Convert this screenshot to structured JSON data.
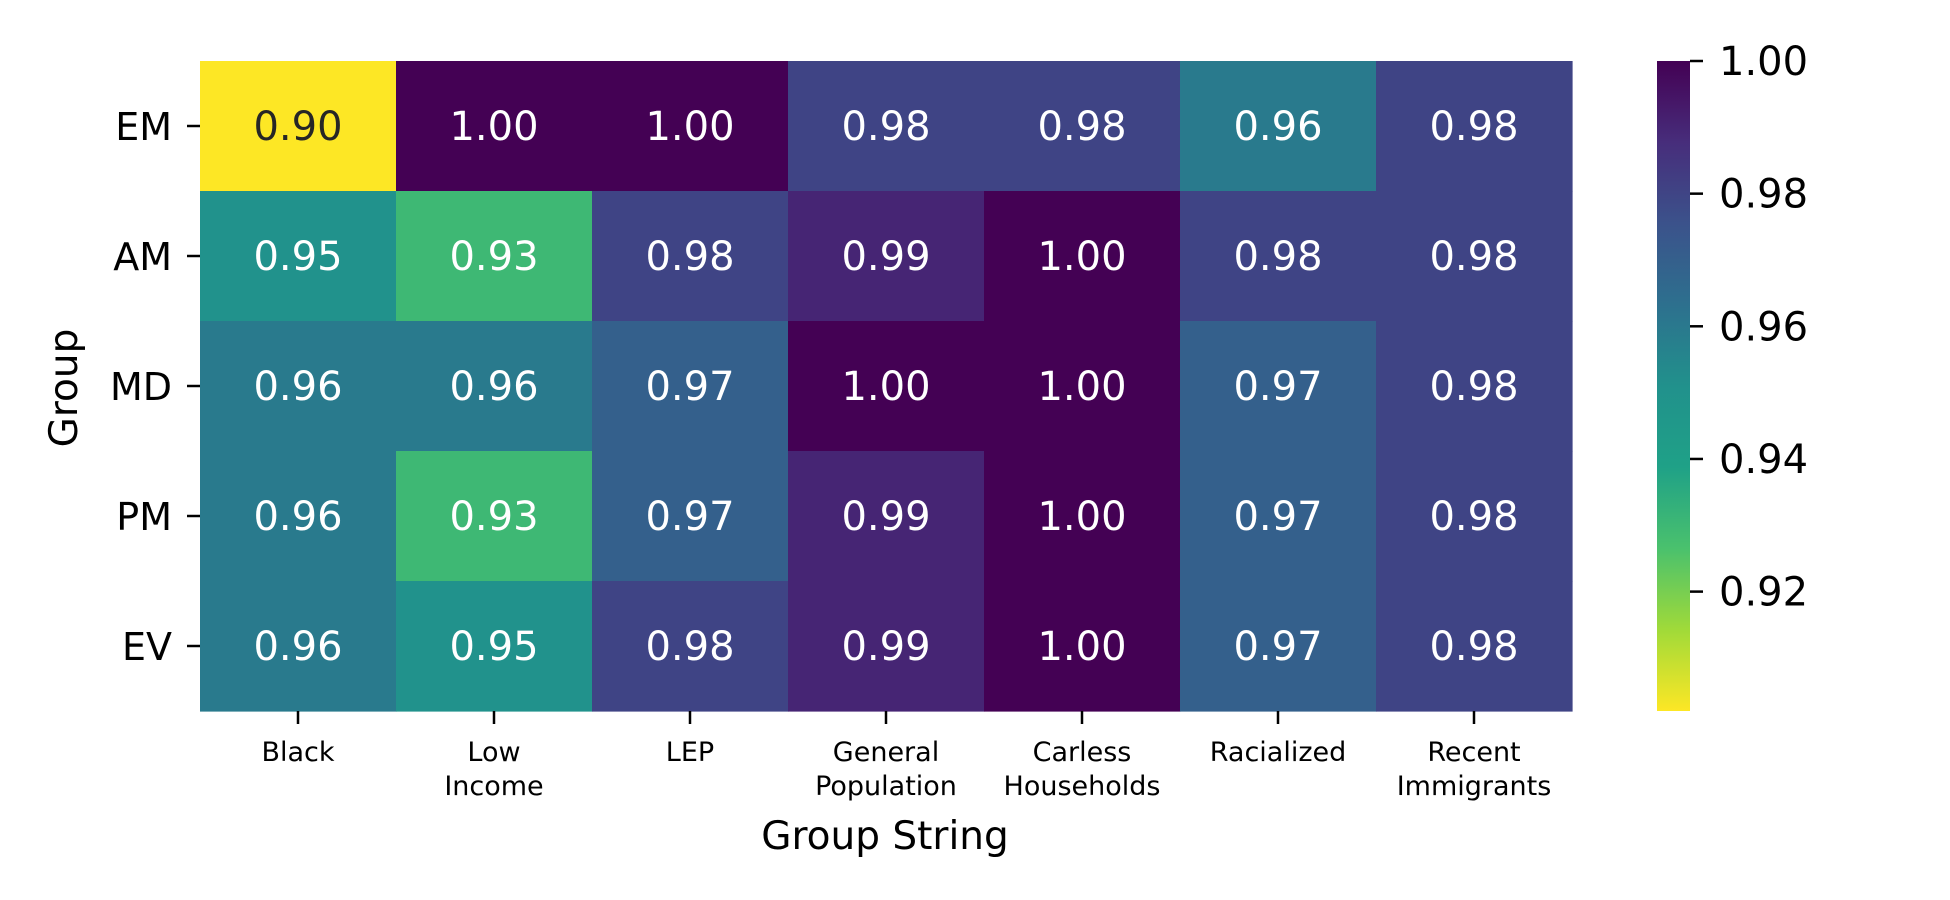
{
  "chart_data": {
    "type": "heatmap",
    "title": "",
    "xlabel": "Group String",
    "ylabel": "Group",
    "columns": [
      [
        "Black"
      ],
      [
        "Low",
        "Income"
      ],
      [
        "LEP"
      ],
      [
        "General",
        "Population"
      ],
      [
        "Carless",
        "Households"
      ],
      [
        "Racialized"
      ],
      [
        "Recent",
        "Immigrants"
      ]
    ],
    "rows": [
      "EM",
      "AM",
      "MD",
      "PM",
      "EV"
    ],
    "values": [
      [
        0.9,
        1.0,
        1.0,
        0.98,
        0.98,
        0.96,
        0.98
      ],
      [
        0.95,
        0.93,
        0.98,
        0.99,
        1.0,
        0.98,
        0.98
      ],
      [
        0.96,
        0.96,
        0.97,
        1.0,
        1.0,
        0.97,
        0.98
      ],
      [
        0.96,
        0.93,
        0.97,
        0.99,
        1.0,
        0.97,
        0.98
      ],
      [
        0.96,
        0.95,
        0.98,
        0.99,
        1.0,
        0.97,
        0.98
      ]
    ],
    "colorbar": {
      "colormap": "viridis_r",
      "range": [
        0.902,
        1.0
      ],
      "ticks": [
        1.0,
        0.98,
        0.96,
        0.94,
        0.92
      ]
    }
  }
}
